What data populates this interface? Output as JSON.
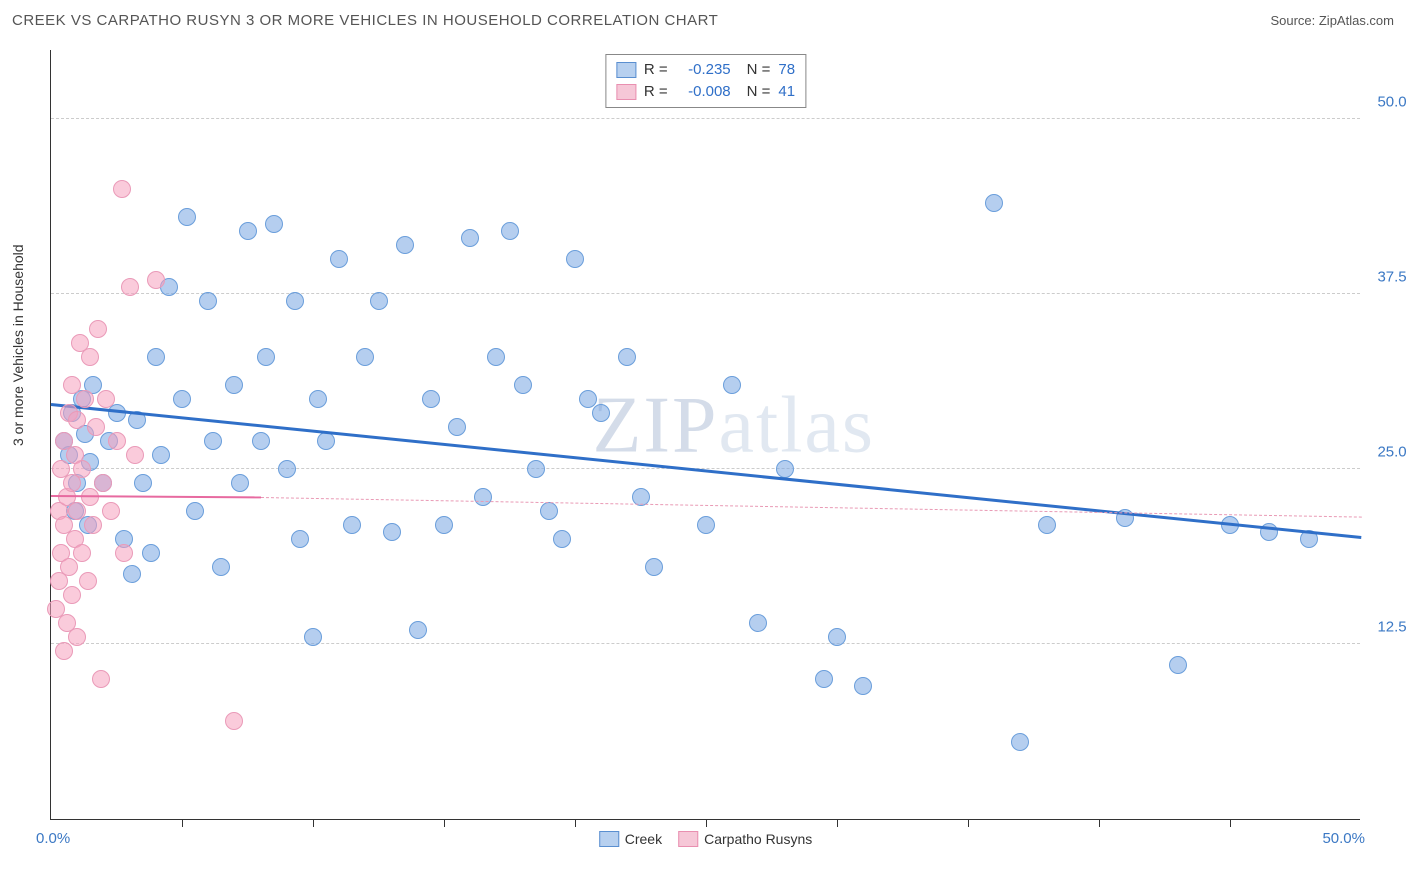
{
  "title": "CREEK VS CARPATHO RUSYN 3 OR MORE VEHICLES IN HOUSEHOLD CORRELATION CHART",
  "source_label": "Source: ",
  "source_name": "ZipAtlas.com",
  "y_axis_label": "3 or more Vehicles in Household",
  "watermark": "ZIPatlas",
  "chart": {
    "type": "scatter",
    "xlim": [
      0,
      50
    ],
    "ylim": [
      0,
      55
    ],
    "x_start_label": "0.0%",
    "x_end_label": "50.0%",
    "y_ticks": [
      12.5,
      25.0,
      37.5,
      50.0
    ],
    "y_tick_labels": [
      "12.5%",
      "25.0%",
      "37.5%",
      "50.0%"
    ],
    "x_minor_ticks": [
      5,
      10,
      15,
      20,
      25,
      30,
      35,
      40,
      45
    ],
    "background_color": "#ffffff",
    "grid_color": "#cccccc",
    "axis_color": "#333333",
    "tick_label_color": "#3b78c4",
    "point_radius": 9,
    "series": [
      {
        "name": "Creek",
        "color_fill": "rgba(120,165,225,0.55)",
        "color_stroke": "#6a9edb",
        "swatch_fill": "#b7d0ef",
        "swatch_stroke": "#5a8fd0",
        "R": "-0.235",
        "N": "78",
        "trend": {
          "x1": 0,
          "y1": 29.5,
          "x2": 50,
          "y2": 20.0,
          "color": "#2f6fc8",
          "width": 3,
          "dash": "solid"
        },
        "dash_extent": null,
        "points": [
          [
            0.5,
            27
          ],
          [
            0.7,
            26
          ],
          [
            0.8,
            29
          ],
          [
            0.9,
            22
          ],
          [
            1.0,
            24
          ],
          [
            1.2,
            30
          ],
          [
            1.3,
            27.5
          ],
          [
            1.4,
            21
          ],
          [
            1.5,
            25.5
          ],
          [
            1.6,
            31
          ],
          [
            2.0,
            24
          ],
          [
            2.2,
            27
          ],
          [
            2.5,
            29
          ],
          [
            2.8,
            20
          ],
          [
            3.1,
            17.5
          ],
          [
            3.3,
            28.5
          ],
          [
            3.5,
            24
          ],
          [
            3.8,
            19
          ],
          [
            4.0,
            33
          ],
          [
            4.2,
            26
          ],
          [
            4.5,
            38
          ],
          [
            5.0,
            30
          ],
          [
            5.2,
            43
          ],
          [
            5.5,
            22
          ],
          [
            6.0,
            37
          ],
          [
            6.2,
            27
          ],
          [
            6.5,
            18
          ],
          [
            7.0,
            31
          ],
          [
            7.2,
            24
          ],
          [
            7.5,
            42
          ],
          [
            8.0,
            27
          ],
          [
            8.2,
            33
          ],
          [
            8.5,
            42.5
          ],
          [
            9.0,
            25
          ],
          [
            9.3,
            37
          ],
          [
            9.5,
            20
          ],
          [
            10.0,
            13
          ],
          [
            10.2,
            30
          ],
          [
            10.5,
            27
          ],
          [
            11.0,
            40
          ],
          [
            11.5,
            21
          ],
          [
            12.0,
            33
          ],
          [
            12.5,
            37
          ],
          [
            13.0,
            20.5
          ],
          [
            13.5,
            41
          ],
          [
            14.0,
            13.5
          ],
          [
            14.5,
            30
          ],
          [
            15.0,
            21
          ],
          [
            15.5,
            28
          ],
          [
            16.0,
            41.5
          ],
          [
            16.5,
            23
          ],
          [
            17.0,
            33
          ],
          [
            17.5,
            42
          ],
          [
            18.0,
            31
          ],
          [
            18.5,
            25
          ],
          [
            19.0,
            22
          ],
          [
            19.5,
            20
          ],
          [
            20.0,
            40
          ],
          [
            20.5,
            30
          ],
          [
            21.0,
            29
          ],
          [
            22.0,
            33
          ],
          [
            22.5,
            23
          ],
          [
            23.0,
            18
          ],
          [
            25.0,
            21
          ],
          [
            26.0,
            31
          ],
          [
            27.0,
            14
          ],
          [
            28.0,
            25
          ],
          [
            29.5,
            10
          ],
          [
            30.0,
            13
          ],
          [
            31.0,
            9.5
          ],
          [
            36.0,
            44
          ],
          [
            37.0,
            5.5
          ],
          [
            41.0,
            21.5
          ],
          [
            43.0,
            11
          ],
          [
            45.0,
            21
          ],
          [
            46.5,
            20.5
          ],
          [
            48.0,
            20
          ],
          [
            38.0,
            21
          ]
        ]
      },
      {
        "name": "Carpatho Rusyns",
        "color_fill": "rgba(245,160,190,0.55)",
        "color_stroke": "#ea9ab8",
        "swatch_fill": "#f6c7d7",
        "swatch_stroke": "#e98fb0",
        "R": "-0.008",
        "N": "41",
        "trend": {
          "x1": 0,
          "y1": 23.0,
          "x2": 8,
          "y2": 22.9,
          "color": "#e76aa0",
          "width": 2.5,
          "dash": "solid"
        },
        "dash_extent": {
          "x1": 8,
          "y1": 22.9,
          "x2": 50,
          "y2": 21.5,
          "color": "#e99ab5",
          "width": 1.2
        },
        "points": [
          [
            0.2,
            15
          ],
          [
            0.3,
            17
          ],
          [
            0.3,
            22
          ],
          [
            0.4,
            19
          ],
          [
            0.4,
            25
          ],
          [
            0.5,
            12
          ],
          [
            0.5,
            21
          ],
          [
            0.5,
            27
          ],
          [
            0.6,
            14
          ],
          [
            0.6,
            23
          ],
          [
            0.7,
            18
          ],
          [
            0.7,
            29
          ],
          [
            0.8,
            16
          ],
          [
            0.8,
            24
          ],
          [
            0.8,
            31
          ],
          [
            0.9,
            20
          ],
          [
            0.9,
            26
          ],
          [
            1.0,
            13
          ],
          [
            1.0,
            22
          ],
          [
            1.0,
            28.5
          ],
          [
            1.1,
            34
          ],
          [
            1.2,
            19
          ],
          [
            1.2,
            25
          ],
          [
            1.3,
            30
          ],
          [
            1.4,
            17
          ],
          [
            1.5,
            23
          ],
          [
            1.5,
            33
          ],
          [
            1.6,
            21
          ],
          [
            1.7,
            28
          ],
          [
            1.8,
            35
          ],
          [
            1.9,
            10
          ],
          [
            2.0,
            24
          ],
          [
            2.1,
            30
          ],
          [
            2.3,
            22
          ],
          [
            2.5,
            27
          ],
          [
            2.7,
            45
          ],
          [
            2.8,
            19
          ],
          [
            3.0,
            38
          ],
          [
            3.2,
            26
          ],
          [
            4.0,
            38.5
          ],
          [
            7.0,
            7
          ]
        ]
      }
    ]
  },
  "stats_labels": {
    "R": "R =",
    "N": "N ="
  },
  "legend": {
    "items": [
      "Creek",
      "Carpatho Rusyns"
    ]
  }
}
